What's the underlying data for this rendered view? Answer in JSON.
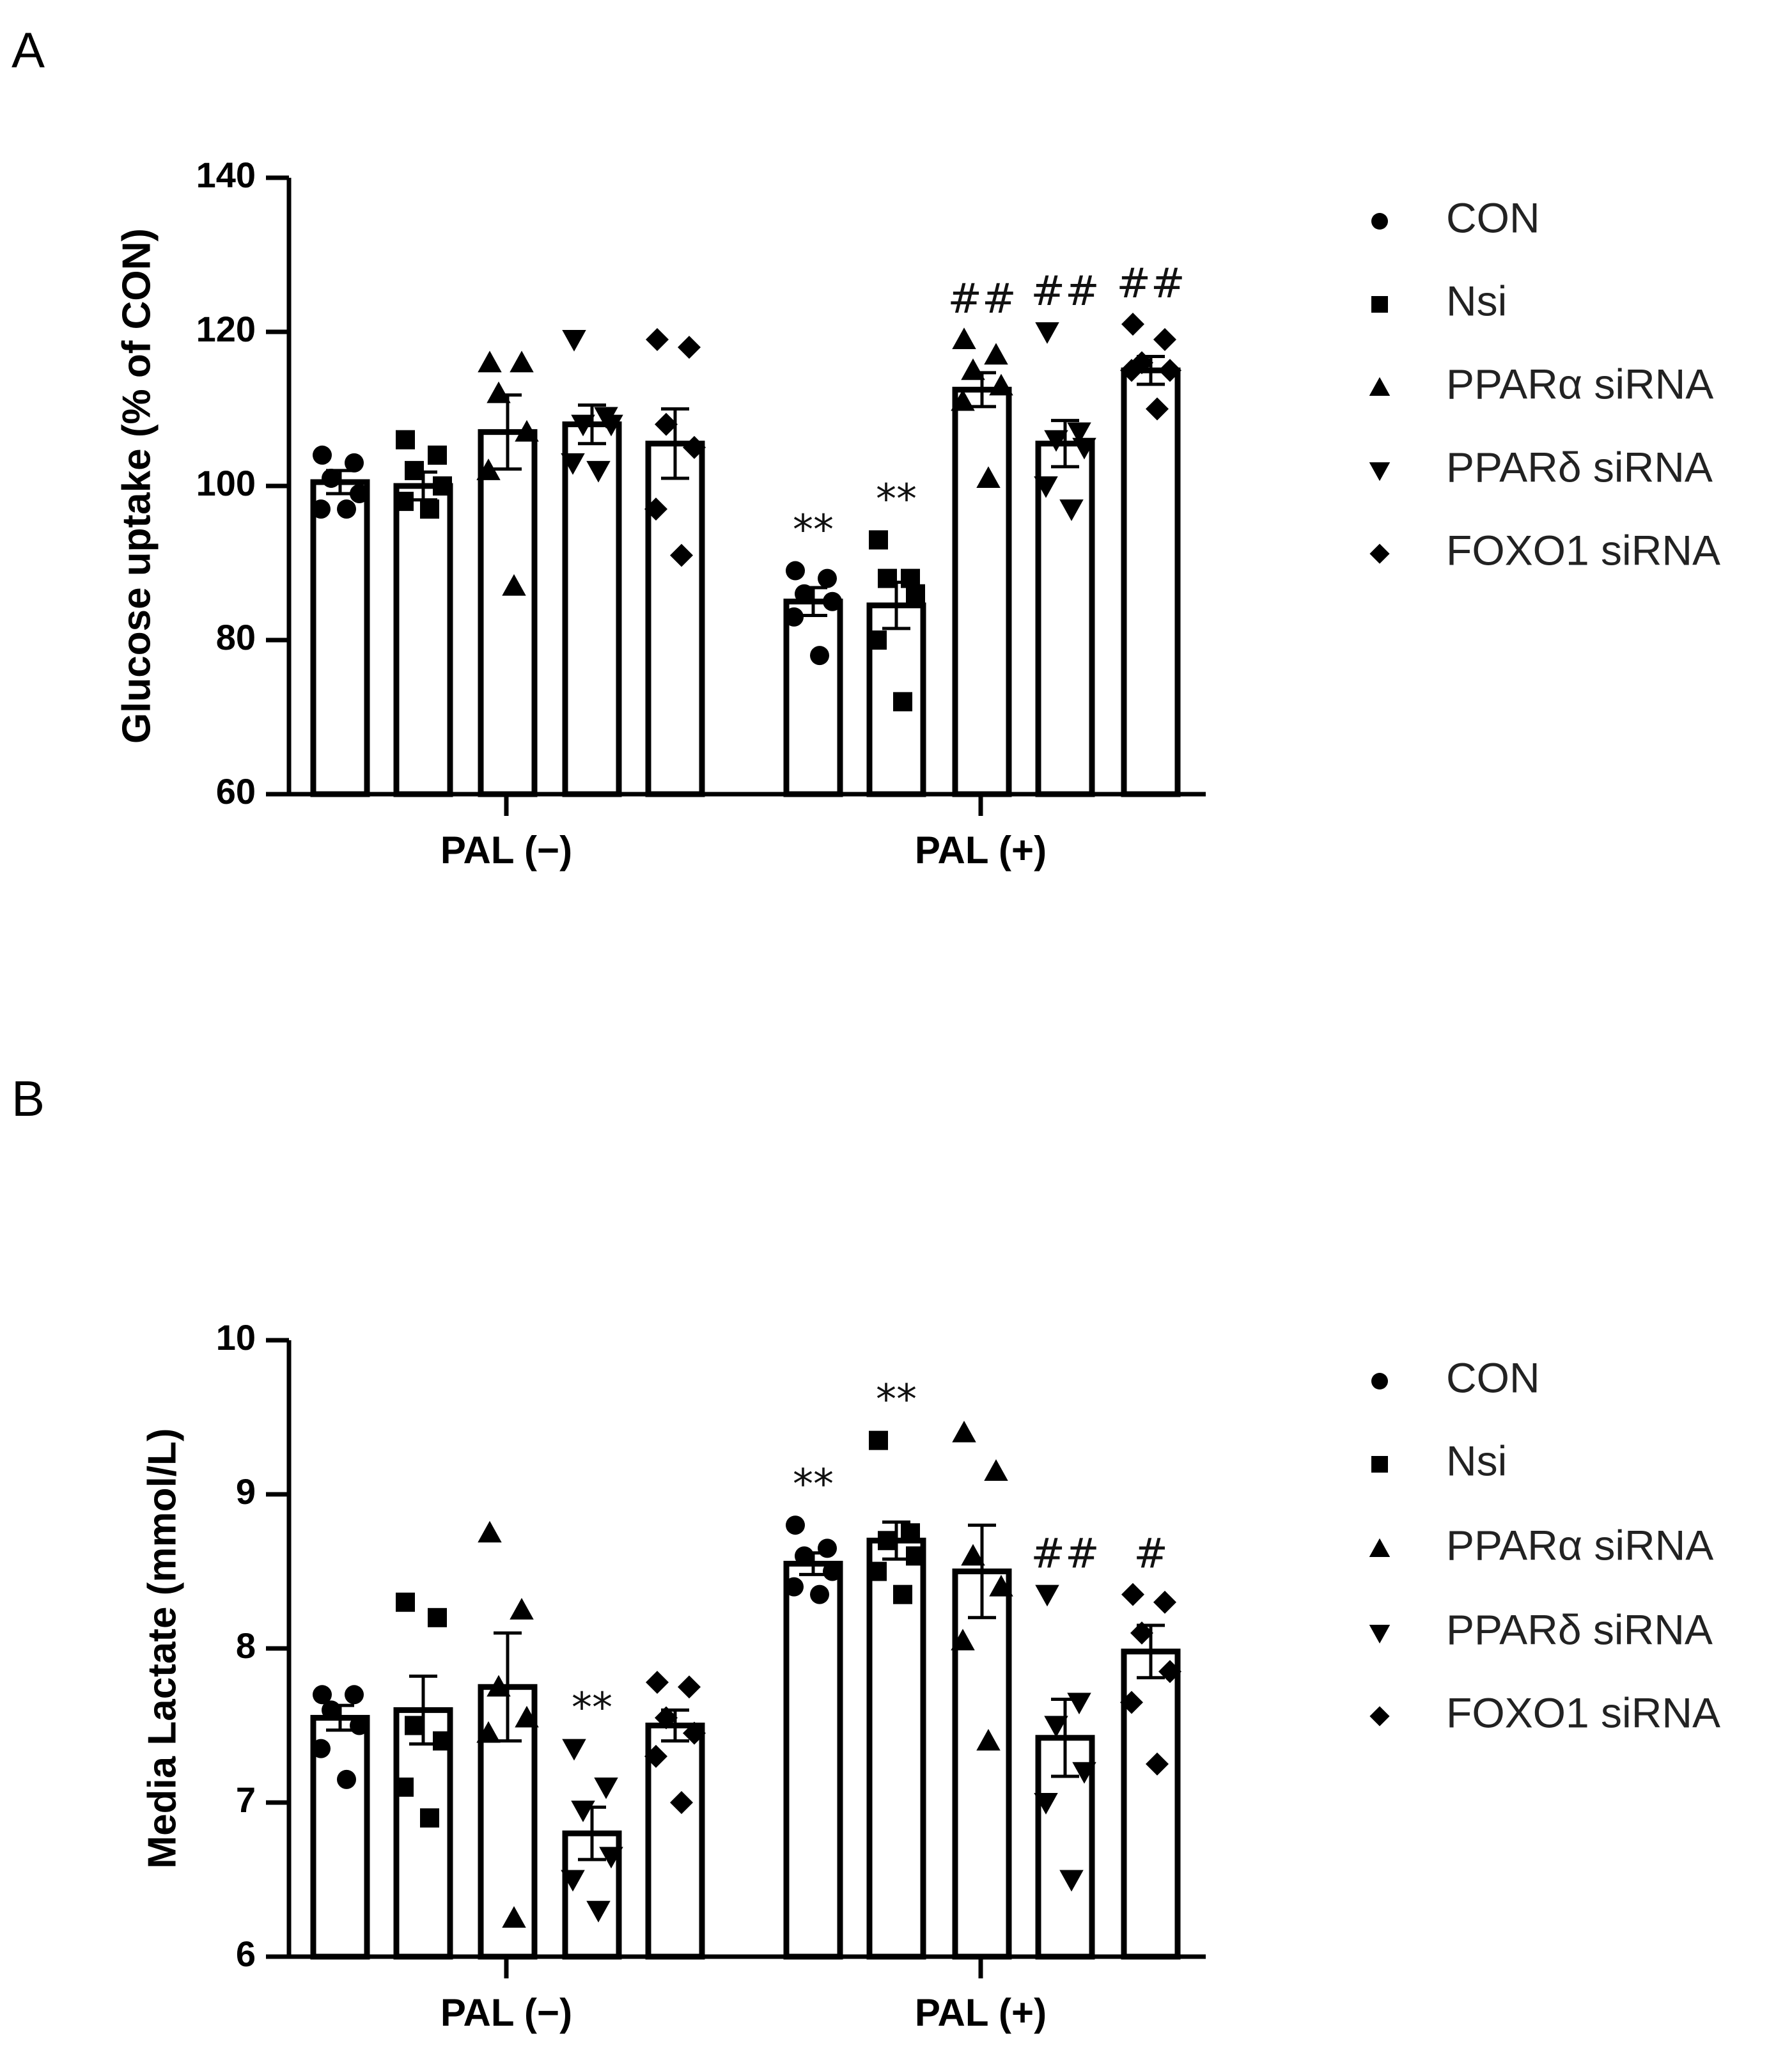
{
  "legend": [
    {
      "name": "CON",
      "marker": "circle"
    },
    {
      "name": "Nsi",
      "marker": "square"
    },
    {
      "name": "PPARα siRNA",
      "marker": "triangle-up"
    },
    {
      "name": "PPARδ siRNA",
      "marker": "triangle-down"
    },
    {
      "name": "FOXO1 siRNA",
      "marker": "diamond"
    }
  ],
  "chart_data": [
    {
      "panel": "A",
      "type": "bar",
      "ylabel": "Glucose uptake (% of CON)",
      "ylim": [
        60,
        140
      ],
      "yticks": [
        60,
        80,
        100,
        120,
        140
      ],
      "groups": [
        "PAL (−)",
        "PAL (+)"
      ],
      "series_names": [
        "CON",
        "Nsi",
        "PPARα siRNA",
        "PPARδ siRNA",
        "FOXO1 siRNA"
      ],
      "bars": [
        {
          "group": 0,
          "series": 0,
          "mean": 100.5,
          "sem": 1.5,
          "sig": "",
          "points": [
            104,
            103,
            101,
            99,
            97,
            97
          ]
        },
        {
          "group": 0,
          "series": 1,
          "mean": 100.0,
          "sem": 1.8,
          "sig": "",
          "points": [
            106,
            104,
            102,
            100,
            98,
            97
          ]
        },
        {
          "group": 0,
          "series": 2,
          "mean": 107.0,
          "sem": 4.8,
          "sig": "",
          "points": [
            116,
            116,
            112,
            107,
            102,
            87
          ]
        },
        {
          "group": 0,
          "series": 3,
          "mean": 108.0,
          "sem": 2.5,
          "sig": "",
          "points": [
            119,
            109,
            108,
            108,
            103,
            102
          ]
        },
        {
          "group": 0,
          "series": 4,
          "mean": 105.5,
          "sem": 4.5,
          "sig": "",
          "points": [
            119,
            118,
            108,
            105,
            97,
            91
          ]
        },
        {
          "group": 1,
          "series": 0,
          "mean": 85.0,
          "sem": 1.8,
          "sig": "**",
          "points": [
            89,
            88,
            86,
            85,
            83,
            78
          ]
        },
        {
          "group": 1,
          "series": 1,
          "mean": 84.5,
          "sem": 3.0,
          "sig": "**",
          "points": [
            93,
            88,
            88,
            86,
            80,
            72
          ]
        },
        {
          "group": 1,
          "series": 2,
          "mean": 112.5,
          "sem": 2.2,
          "sig": "##",
          "points": [
            119,
            117,
            115,
            113,
            111,
            101
          ]
        },
        {
          "group": 1,
          "series": 3,
          "mean": 105.5,
          "sem": 3.0,
          "sig": "##",
          "points": [
            120,
            107,
            106,
            105,
            100,
            97
          ]
        },
        {
          "group": 1,
          "series": 4,
          "mean": 115.0,
          "sem": 1.8,
          "sig": "##",
          "points": [
            121,
            119,
            116,
            115,
            115,
            110
          ]
        }
      ]
    },
    {
      "panel": "B",
      "type": "bar",
      "ylabel": "Media Lactate (mmol/L)",
      "ylim": [
        6,
        10
      ],
      "yticks": [
        6,
        7,
        8,
        9,
        10
      ],
      "groups": [
        "PAL (−)",
        "PAL (+)"
      ],
      "series_names": [
        "CON",
        "Nsi",
        "PPARα siRNA",
        "PPARδ siRNA",
        "FOXO1 siRNA"
      ],
      "bars": [
        {
          "group": 0,
          "series": 0,
          "mean": 7.55,
          "sem": 0.08,
          "sig": "",
          "points": [
            7.7,
            7.7,
            7.6,
            7.5,
            7.35,
            7.15
          ]
        },
        {
          "group": 0,
          "series": 1,
          "mean": 7.6,
          "sem": 0.22,
          "sig": "",
          "points": [
            8.3,
            8.2,
            7.5,
            7.4,
            7.1,
            6.9
          ]
        },
        {
          "group": 0,
          "series": 2,
          "mean": 7.75,
          "sem": 0.35,
          "sig": "",
          "points": [
            8.75,
            8.25,
            7.75,
            7.55,
            7.45,
            6.25
          ]
        },
        {
          "group": 0,
          "series": 3,
          "mean": 6.8,
          "sem": 0.17,
          "sig": "**",
          "points": [
            7.35,
            7.1,
            6.95,
            6.65,
            6.5,
            6.3
          ]
        },
        {
          "group": 0,
          "series": 4,
          "mean": 7.5,
          "sem": 0.1,
          "sig": "",
          "points": [
            7.78,
            7.75,
            7.55,
            7.45,
            7.3,
            7.0
          ]
        },
        {
          "group": 1,
          "series": 0,
          "mean": 8.55,
          "sem": 0.07,
          "sig": "**",
          "points": [
            8.8,
            8.65,
            8.6,
            8.5,
            8.4,
            8.35
          ]
        },
        {
          "group": 1,
          "series": 1,
          "mean": 8.7,
          "sem": 0.12,
          "sig": "**",
          "points": [
            9.35,
            8.75,
            8.7,
            8.6,
            8.5,
            8.35
          ]
        },
        {
          "group": 1,
          "series": 2,
          "mean": 8.5,
          "sem": 0.3,
          "sig": "",
          "points": [
            9.4,
            9.15,
            8.6,
            8.4,
            8.05,
            7.4
          ]
        },
        {
          "group": 1,
          "series": 3,
          "mean": 7.42,
          "sem": 0.25,
          "sig": "##",
          "points": [
            8.35,
            7.65,
            7.5,
            7.2,
            7.0,
            6.5
          ]
        },
        {
          "group": 1,
          "series": 4,
          "mean": 7.98,
          "sem": 0.17,
          "sig": "#",
          "points": [
            8.35,
            8.3,
            8.1,
            7.85,
            7.65,
            7.25
          ]
        }
      ]
    }
  ]
}
